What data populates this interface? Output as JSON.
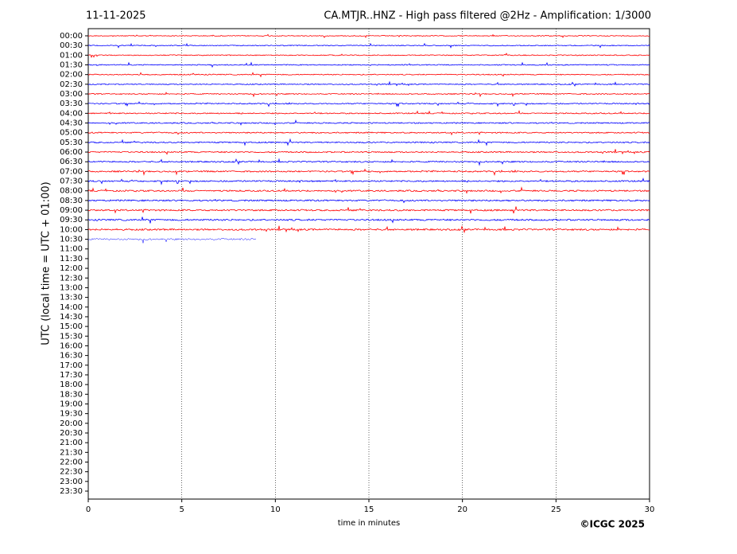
{
  "chart_data": {
    "type": "helicorder",
    "date": "11-11-2025",
    "title": "CA.MTJR..HNZ - High pass filtered @2Hz - Amplification: 1/3000",
    "x_label": "time in minutes",
    "y_label": "UTC (local time = UTC + 01:00)",
    "copyright": "©ICGC 2025",
    "categories": [
      "00:00",
      "00:30",
      "01:00",
      "01:30",
      "02:00",
      "02:30",
      "03:00",
      "03:30",
      "04:00",
      "04:30",
      "05:00",
      "05:30",
      "06:00",
      "06:30",
      "07:00",
      "07:30",
      "08:00",
      "08:30",
      "09:00",
      "09:30",
      "10:00",
      "10:30",
      "11:00",
      "11:30",
      "12:00",
      "12:30",
      "13:00",
      "13:30",
      "14:00",
      "14:30",
      "15:00",
      "15:30",
      "16:00",
      "16:30",
      "17:00",
      "17:30",
      "18:00",
      "18:30",
      "19:00",
      "19:30",
      "20:00",
      "20:30",
      "21:00",
      "21:30",
      "22:00",
      "22:30",
      "23:00",
      "23:30"
    ],
    "values": [
      30,
      30,
      30,
      30,
      30,
      30,
      30,
      30,
      30,
      30,
      30,
      30,
      30,
      30,
      30,
      30,
      30,
      30,
      30,
      30,
      30,
      9,
      null,
      null,
      null,
      null,
      null,
      null,
      null,
      null,
      null,
      null,
      null,
      null,
      null,
      null,
      null,
      null,
      null,
      null,
      null,
      null,
      null,
      null,
      null,
      null,
      null,
      null
    ],
    "colors": [
      "#ff0000",
      "#0000ff"
    ],
    "xlim": [
      0,
      30
    ],
    "xticks": [
      0,
      5,
      10,
      15,
      20,
      25,
      30
    ],
    "grid": true
  }
}
